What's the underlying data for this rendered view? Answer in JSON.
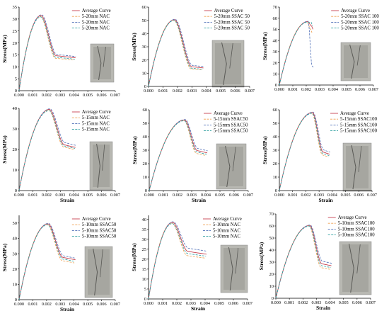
{
  "colors": {
    "average": "#c8404e",
    "series2": "#f0a050",
    "series3": "#5070b8",
    "series4": "#30a0a0",
    "specimen_light": "#b8b8b2",
    "specimen_dark": "#5a5a56"
  },
  "chart_data": [
    {
      "type": "line",
      "ylabel": "Stress(MPa)",
      "xlabel": "",
      "xlim": [
        0,
        0.007
      ],
      "ylim": [
        0,
        35
      ],
      "xticks": [
        "0.000",
        "0.001",
        "0.002",
        "0.003",
        "0.004",
        "0.005",
        "0.006",
        "0.007"
      ],
      "yticks": [
        "0",
        "5",
        "10",
        "15",
        "20",
        "25",
        "30",
        "35"
      ],
      "peak_x": 0.0016,
      "peak_y": 31.5,
      "end_x": 0.0041,
      "end_y": [
        13.8,
        12.8,
        14.3,
        13.2
      ],
      "fall": 0.0011,
      "series": [
        {
          "name": "Average Curve",
          "style": "solid"
        },
        {
          "name": "5-20mm NAC",
          "style": "dash"
        },
        {
          "name": "5-20mm NAC",
          "style": "dash"
        },
        {
          "name": "5-20mm NAC",
          "style": "dash"
        }
      ]
    },
    {
      "type": "line",
      "ylabel": "Stress(MPa)",
      "xlabel": "",
      "xlim": [
        0,
        0.007
      ],
      "ylim": [
        0,
        60
      ],
      "xticks": [
        "0.000",
        "0.001",
        "0.002",
        "0.003",
        "0.004",
        "0.005",
        "0.006",
        "0.007"
      ],
      "yticks": [
        "0",
        "10",
        "20",
        "30",
        "40",
        "50",
        "60"
      ],
      "peak_x": 0.0018,
      "peak_y": 50.5,
      "end_x": 0.0038,
      "end_y": [
        14,
        12.5,
        15,
        13
      ],
      "fall": 0.0012,
      "series": [
        {
          "name": "Average Curve",
          "style": "solid"
        },
        {
          "name": "5-20mm SSAC 50",
          "style": "dash"
        },
        {
          "name": "5-20mm SSAC 50",
          "style": "dash"
        },
        {
          "name": "5-20mm SSAC 50",
          "style": "dash"
        }
      ]
    },
    {
      "type": "line",
      "ylabel": "Stress(MPa)",
      "xlabel": "",
      "xlim": [
        0,
        0.007
      ],
      "ylim": [
        0,
        70
      ],
      "xticks": [
        "0.000",
        "0.001",
        "0.002",
        "0.003",
        "0.004",
        "0.005",
        "0.006",
        "0.007"
      ],
      "yticks": [
        "0",
        "10",
        "20",
        "30",
        "40",
        "50",
        "60",
        "70"
      ],
      "peak_x": 0.0021,
      "peak_y": 57,
      "end_x": 0.0025,
      "end_y": [
        50,
        47,
        16,
        53
      ],
      "fall": 0.0003,
      "series": [
        {
          "name": "Average Curve",
          "style": "solid"
        },
        {
          "name": "5-20mm SSAC 100",
          "style": "dash"
        },
        {
          "name": "5-20mm SSAC 100",
          "style": "dash"
        },
        {
          "name": "5-20mm SSAC 100",
          "style": "dash"
        }
      ]
    },
    {
      "type": "line",
      "ylabel": "Stress(MPa)",
      "xlabel": "Strain",
      "xlim": [
        0,
        0.007
      ],
      "ylim": [
        0,
        40
      ],
      "xticks": [
        "0.000",
        "0.001",
        "0.002",
        "0.003",
        "0.004",
        "0.005",
        "0.006",
        "0.007"
      ],
      "yticks": [
        "0",
        "10",
        "20",
        "30",
        "40"
      ],
      "peak_x": 0.0022,
      "peak_y": 39.5,
      "end_x": 0.0041,
      "end_y": [
        21,
        20,
        22,
        20.5
      ],
      "fall": 0.0011,
      "series": [
        {
          "name": "Average Curve",
          "style": "solid"
        },
        {
          "name": "5-15mm NAC",
          "style": "dash"
        },
        {
          "name": "5-15mm NAC",
          "style": "dash"
        },
        {
          "name": "5-15mm NAC",
          "style": "dash"
        }
      ]
    },
    {
      "type": "line",
      "ylabel": "Stress(MPa)",
      "xlabel": "Strain",
      "xlim": [
        0,
        0.007
      ],
      "ylim": [
        0,
        60
      ],
      "xticks": [
        "0.000",
        "0.001",
        "0.002",
        "0.003",
        "0.004",
        "0.005",
        "0.006",
        "0.007"
      ],
      "yticks": [
        "0",
        "10",
        "20",
        "30",
        "40",
        "50",
        "60"
      ],
      "peak_x": 0.0025,
      "peak_y": 52.5,
      "end_x": 0.0041,
      "end_y": [
        28,
        26,
        29.5,
        27
      ],
      "fall": 0.0009,
      "series": [
        {
          "name": "Average Curve",
          "style": "solid"
        },
        {
          "name": "5-15mm SSAC50",
          "style": "dash"
        },
        {
          "name": "5-15mm SSAC50",
          "style": "dash"
        },
        {
          "name": "5-15mm SSAC50",
          "style": "dash"
        }
      ]
    },
    {
      "type": "line",
      "ylabel": "Stress(MPa)",
      "xlabel": "Strain",
      "xlim": [
        0,
        0.007
      ],
      "ylim": [
        0,
        60
      ],
      "xticks": [
        "0.000",
        "0.001",
        "0.002",
        "0.003",
        "0.004",
        "0.005",
        "0.006",
        "0.007"
      ],
      "yticks": [
        "0",
        "10",
        "20",
        "30",
        "40",
        "50",
        "60"
      ],
      "peak_x": 0.0025,
      "peak_y": 58,
      "end_x": 0.0038,
      "end_y": [
        27,
        25,
        28.5,
        26
      ],
      "fall": 0.0008,
      "series": [
        {
          "name": "Average Curve",
          "style": "solid"
        },
        {
          "name": "5-15mm SSAC100",
          "style": "dash"
        },
        {
          "name": "5-15mm SSAC100",
          "style": "dash"
        },
        {
          "name": "5-15mm SSAC100",
          "style": "dash"
        }
      ]
    },
    {
      "type": "line",
      "ylabel": "Stress(MPa)",
      "xlabel": "Strain",
      "xlim": [
        0,
        0.007
      ],
      "ylim": [
        0,
        55
      ],
      "xticks": [
        "0.000",
        "0.001",
        "0.002",
        "0.003",
        "0.004",
        "0.005",
        "0.006",
        "0.007"
      ],
      "yticks": [
        "0",
        "10",
        "20",
        "30",
        "40",
        "50"
      ],
      "peak_x": 0.0021,
      "peak_y": 49.5,
      "end_x": 0.0041,
      "end_y": [
        26,
        24,
        27,
        25
      ],
      "fall": 0.0011,
      "series": [
        {
          "name": "Average Curve",
          "style": "solid"
        },
        {
          "name": "5-10mm SSAC50",
          "style": "dash"
        },
        {
          "name": "5-10mm SSAC50",
          "style": "dash"
        },
        {
          "name": "5-10mm SSAC50",
          "style": "dash"
        }
      ]
    },
    {
      "type": "line",
      "ylabel": "Stress(MPa)",
      "xlabel": "Strain",
      "xlim": [
        0,
        0.007
      ],
      "ylim": [
        0,
        42
      ],
      "xticks": [
        "0.000",
        "0.001",
        "0.002",
        "0.003",
        "0.004",
        "0.005",
        "0.006",
        "0.007"
      ],
      "yticks": [
        "0",
        "5",
        "10",
        "15",
        "20",
        "25",
        "30",
        "35",
        "40"
      ],
      "peak_x": 0.0017,
      "peak_y": 38.5,
      "end_x": 0.0041,
      "end_y": [
        22.5,
        20.5,
        24,
        21.5
      ],
      "fall": 0.0011,
      "series": [
        {
          "name": "Average Curve",
          "style": "solid"
        },
        {
          "name": "5-10mm NAC",
          "style": "dash"
        },
        {
          "name": "5-10mm NAC",
          "style": "dash"
        },
        {
          "name": "5-10mm NAC",
          "style": "dash"
        }
      ]
    },
    {
      "type": "line",
      "ylabel": "Stress(MPa)",
      "xlabel": "Strain",
      "xlim": [
        0,
        0.007
      ],
      "ylim": [
        0,
        70
      ],
      "xticks": [
        "0.000",
        "0.001",
        "0.002",
        "0.003",
        "0.004",
        "0.005",
        "0.006",
        "0.007"
      ],
      "yticks": [
        "0",
        "10",
        "20",
        "30",
        "40",
        "50",
        "60",
        "70"
      ],
      "peak_x": 0.0025,
      "peak_y": 60.5,
      "end_x": 0.0041,
      "end_y": [
        27,
        24,
        29,
        25.5
      ],
      "fall": 0.0009,
      "series": [
        {
          "name": "Average Curve",
          "style": "solid"
        },
        {
          "name": "5-10mm SSAC100",
          "style": "dash"
        },
        {
          "name": "5-10mm SSAC100",
          "style": "dash"
        },
        {
          "name": "5-10mm SSAC100",
          "style": "dash"
        }
      ]
    }
  ]
}
